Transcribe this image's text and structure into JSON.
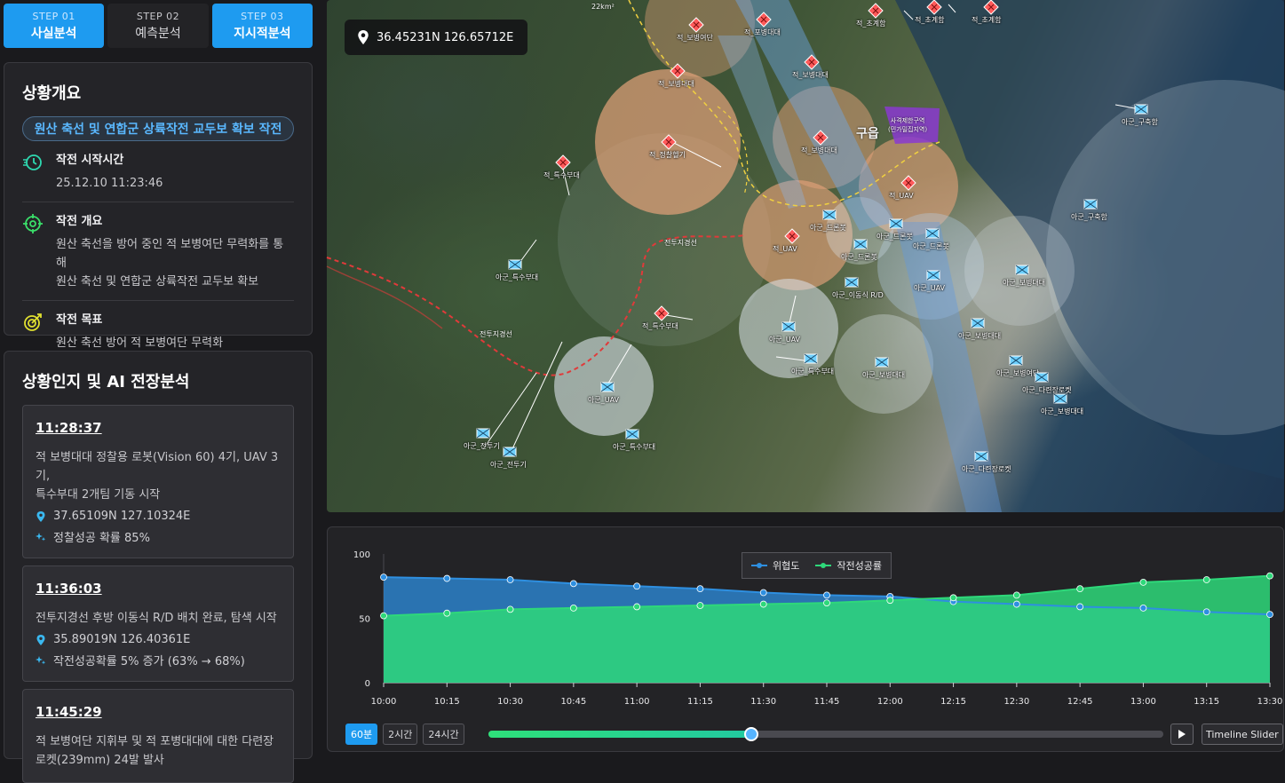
{
  "steps": [
    {
      "num": "STEP 01",
      "label": "사실분석",
      "active": true
    },
    {
      "num": "STEP 02",
      "label": "예측분석",
      "active": false
    },
    {
      "num": "STEP 03",
      "label": "지시적분석",
      "active": true
    }
  ],
  "overview": {
    "title": "상황개요",
    "operation_name": "원산 축선 및 연합군 상륙작전 교두보 확보 작전",
    "items": [
      {
        "icon": "clock-icon",
        "title": "작전 시작시간",
        "value": "25.12.10 11:23:46"
      },
      {
        "icon": "crosshair-icon",
        "title": "작전 개요",
        "value": "원산 축선을 방어 중인 적 보병여단 무력화를 통해\n원산 축선 및 연합군 상륙작전 교두보 확보"
      },
      {
        "icon": "target-icon",
        "title": "작전 목표",
        "value": "원산 축선 방어 적 보병여단 무력화"
      }
    ]
  },
  "ai_panel": {
    "title": "상황인지 및 AI 전장분석",
    "events": [
      {
        "time": "11:28:37",
        "desc": "적 보병대대 정찰용 로봇(Vision 60) 4기, UAV 3기,\n특수부대 2개팀 기동 시작",
        "coord": "37.65109N 127.10324E",
        "metric": "정찰성공 확률 85%"
      },
      {
        "time": "11:36:03",
        "desc": "전투지경선 후방 이동식 R/D 배치 완료, 탐색 시작",
        "coord": "35.89019N 126.40361E",
        "metric": "작전성공확률 5% 증가 (63% → 68%)"
      },
      {
        "time": "11:45:29",
        "desc": "적 보병여단 지휘부 및 적 포병대대에 대한 다련장\n로켓(239mm) 24발 발사",
        "coord": "",
        "metric": ""
      }
    ]
  },
  "map": {
    "coord_readout": "36.45231N 126.65712E",
    "colors": {
      "enemy": "#ff5a5a",
      "friendly": "#6ed0ff",
      "enemy_zone": "#e4a27a",
      "friendly_zone": "#c8d4e0",
      "border": "#e03a3a",
      "route": "#f0d040",
      "restricted": "#8a3ad0"
    },
    "labels": {
      "battle_line_1": "전투지경선",
      "battle_line_2": "전투지경선",
      "area": "22km²",
      "city": "구읍",
      "restricted_zone": "사격제한구역\n(민가밀집지역)"
    },
    "units": [
      {
        "side": "enemy",
        "label": "적_보병여단"
      },
      {
        "side": "enemy",
        "label": "적_포병대대"
      },
      {
        "side": "enemy",
        "label": "적_보병대대"
      },
      {
        "side": "enemy",
        "label": "적_보병대대"
      },
      {
        "side": "enemy",
        "label": "적_정찰헬기"
      },
      {
        "side": "enemy",
        "label": "적_특수부대"
      },
      {
        "side": "enemy",
        "label": "적_보병대대"
      },
      {
        "side": "enemy",
        "label": "적_UAV"
      },
      {
        "side": "enemy",
        "label": "적_UAV"
      },
      {
        "side": "enemy",
        "label": "적_특수부대"
      },
      {
        "side": "enemy",
        "label": "적_초계함"
      },
      {
        "side": "enemy",
        "label": "적_초계함"
      },
      {
        "side": "enemy",
        "label": "적_초계함"
      },
      {
        "side": "friendly",
        "label": "아군_드론봇"
      },
      {
        "side": "friendly",
        "label": "아군_드론봇"
      },
      {
        "side": "friendly",
        "label": "아군_드론봇"
      },
      {
        "side": "friendly",
        "label": "아군_드론봇"
      },
      {
        "side": "friendly",
        "label": "아군_이동식 R/D"
      },
      {
        "side": "friendly",
        "label": "아군_UAV"
      },
      {
        "side": "friendly",
        "label": "아군_UAV"
      },
      {
        "side": "friendly",
        "label": "아군_UAV"
      },
      {
        "side": "friendly",
        "label": "아군_특수부대"
      },
      {
        "side": "friendly",
        "label": "아군_특수부대"
      },
      {
        "side": "friendly",
        "label": "아군_특수부대"
      },
      {
        "side": "friendly",
        "label": "아군_보병대대"
      },
      {
        "side": "friendly",
        "label": "아군_보병대대"
      },
      {
        "side": "friendly",
        "label": "아군_보병대대"
      },
      {
        "side": "friendly",
        "label": "아군_보병대대"
      },
      {
        "side": "friendly",
        "label": "아군_보병여단"
      },
      {
        "side": "friendly",
        "label": "아군_전투기"
      },
      {
        "side": "friendly",
        "label": "아군_전투기"
      },
      {
        "side": "friendly",
        "label": "아군_구축함"
      },
      {
        "side": "friendly",
        "label": "아군_구축함"
      },
      {
        "side": "friendly",
        "label": "아군_다련장로켓"
      },
      {
        "side": "friendly",
        "label": "아군_다련장로켓"
      }
    ]
  },
  "chart_data": {
    "type": "area",
    "x": [
      "10:00",
      "10:15",
      "10:30",
      "10:45",
      "11:00",
      "11:15",
      "11:30",
      "11:45",
      "12:00",
      "12:15",
      "12:30",
      "12:45",
      "13:00",
      "13:15",
      "13:30"
    ],
    "ylim": [
      0,
      100
    ],
    "yticks": [
      0,
      50,
      100
    ],
    "legend_position": "top-center",
    "series": [
      {
        "name": "위협도",
        "color": "#2e8fe0",
        "values": [
          82,
          81,
          80,
          77,
          75,
          73,
          70,
          68,
          67,
          63,
          61,
          59,
          58,
          55,
          53
        ]
      },
      {
        "name": "작전성공률",
        "color": "#2ed87a",
        "values": [
          52,
          54,
          57,
          58,
          59,
          60,
          61,
          62,
          64,
          66,
          68,
          73,
          78,
          80,
          83
        ]
      }
    ]
  },
  "timeline": {
    "ranges": [
      "60분",
      "2시간",
      "24시간"
    ],
    "active_range": "60분",
    "progress": 0.39,
    "slider_label": "Timeline Slider"
  }
}
